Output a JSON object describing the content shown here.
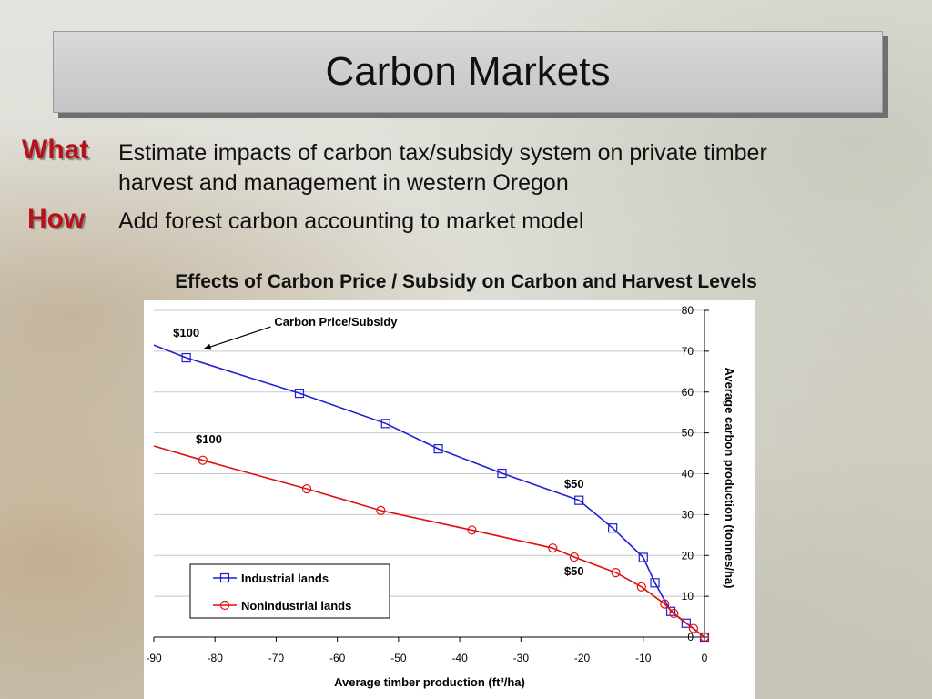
{
  "slide": {
    "title": "Carbon Markets",
    "what_label": "What",
    "what_text_line1": "Estimate impacts of carbon tax/subsidy system on private timber",
    "what_text_line2": "harvest and management in western Oregon",
    "how_label": "How",
    "how_text": "Add forest carbon accounting to market model"
  },
  "chart_data": {
    "type": "line",
    "title": "Effects of Carbon Price / Subsidy on Carbon and Harvest Levels",
    "xlabel": "Average timber production (ft³/ha)",
    "ylabel": "Average carbon production (tonnes/ha)",
    "xlim": [
      -90,
      0
    ],
    "ylim": [
      0,
      80
    ],
    "x_ticks": [
      -90,
      -80,
      -70,
      -60,
      -50,
      -40,
      -30,
      -20,
      -10,
      0
    ],
    "y_ticks": [
      0,
      10,
      20,
      30,
      40,
      50,
      60,
      70,
      80
    ],
    "grid": "horizontal",
    "legend_position": "lower-left",
    "series": [
      {
        "name": "Industrial lands",
        "color": "#1f1fd1",
        "marker": "square",
        "line_start": [
          -90,
          71.5
        ],
        "points": [
          [
            -84.7,
            68.4
          ],
          [
            -66.2,
            59.7
          ],
          [
            -52.1,
            52.3
          ],
          [
            -43.5,
            46.1
          ],
          [
            -33.1,
            40.1
          ],
          [
            -20.5,
            33.5
          ],
          [
            -15.0,
            26.7
          ],
          [
            -10.0,
            19.5
          ],
          [
            -8.1,
            13.3
          ],
          [
            -5.5,
            6.3
          ],
          [
            -3.0,
            3.4
          ],
          [
            0,
            0
          ]
        ]
      },
      {
        "name": "Nonindustrial lands",
        "color": "#e01010",
        "marker": "circle",
        "line_start": [
          -90,
          46.8
        ],
        "points": [
          [
            -82.0,
            43.3
          ],
          [
            -65.0,
            36.3
          ],
          [
            -52.9,
            31.0
          ],
          [
            -38.0,
            26.2
          ],
          [
            -24.8,
            21.8
          ],
          [
            -21.3,
            19.6
          ],
          [
            -14.5,
            15.8
          ],
          [
            -10.3,
            12.3
          ],
          [
            -6.5,
            8.1
          ],
          [
            -5.0,
            5.8
          ],
          [
            -1.8,
            2.1
          ],
          [
            0,
            0
          ]
        ]
      }
    ],
    "annotations": [
      {
        "text": "$100",
        "at": [
          -84.7,
          73.5
        ],
        "anchor": "middle"
      },
      {
        "text": "$100",
        "at": [
          -81.0,
          47.5
        ],
        "anchor": "middle"
      },
      {
        "text": "$50",
        "at": [
          -21.3,
          36.5
        ],
        "anchor": "middle"
      },
      {
        "text": "$50",
        "at": [
          -21.3,
          15.2
        ],
        "anchor": "middle"
      },
      {
        "text": "Carbon Price/Subsidy",
        "at": [
          -70.3,
          76.2
        ],
        "anchor": "start",
        "arrow_to": [
          -81.9,
          70.5
        ]
      }
    ]
  }
}
